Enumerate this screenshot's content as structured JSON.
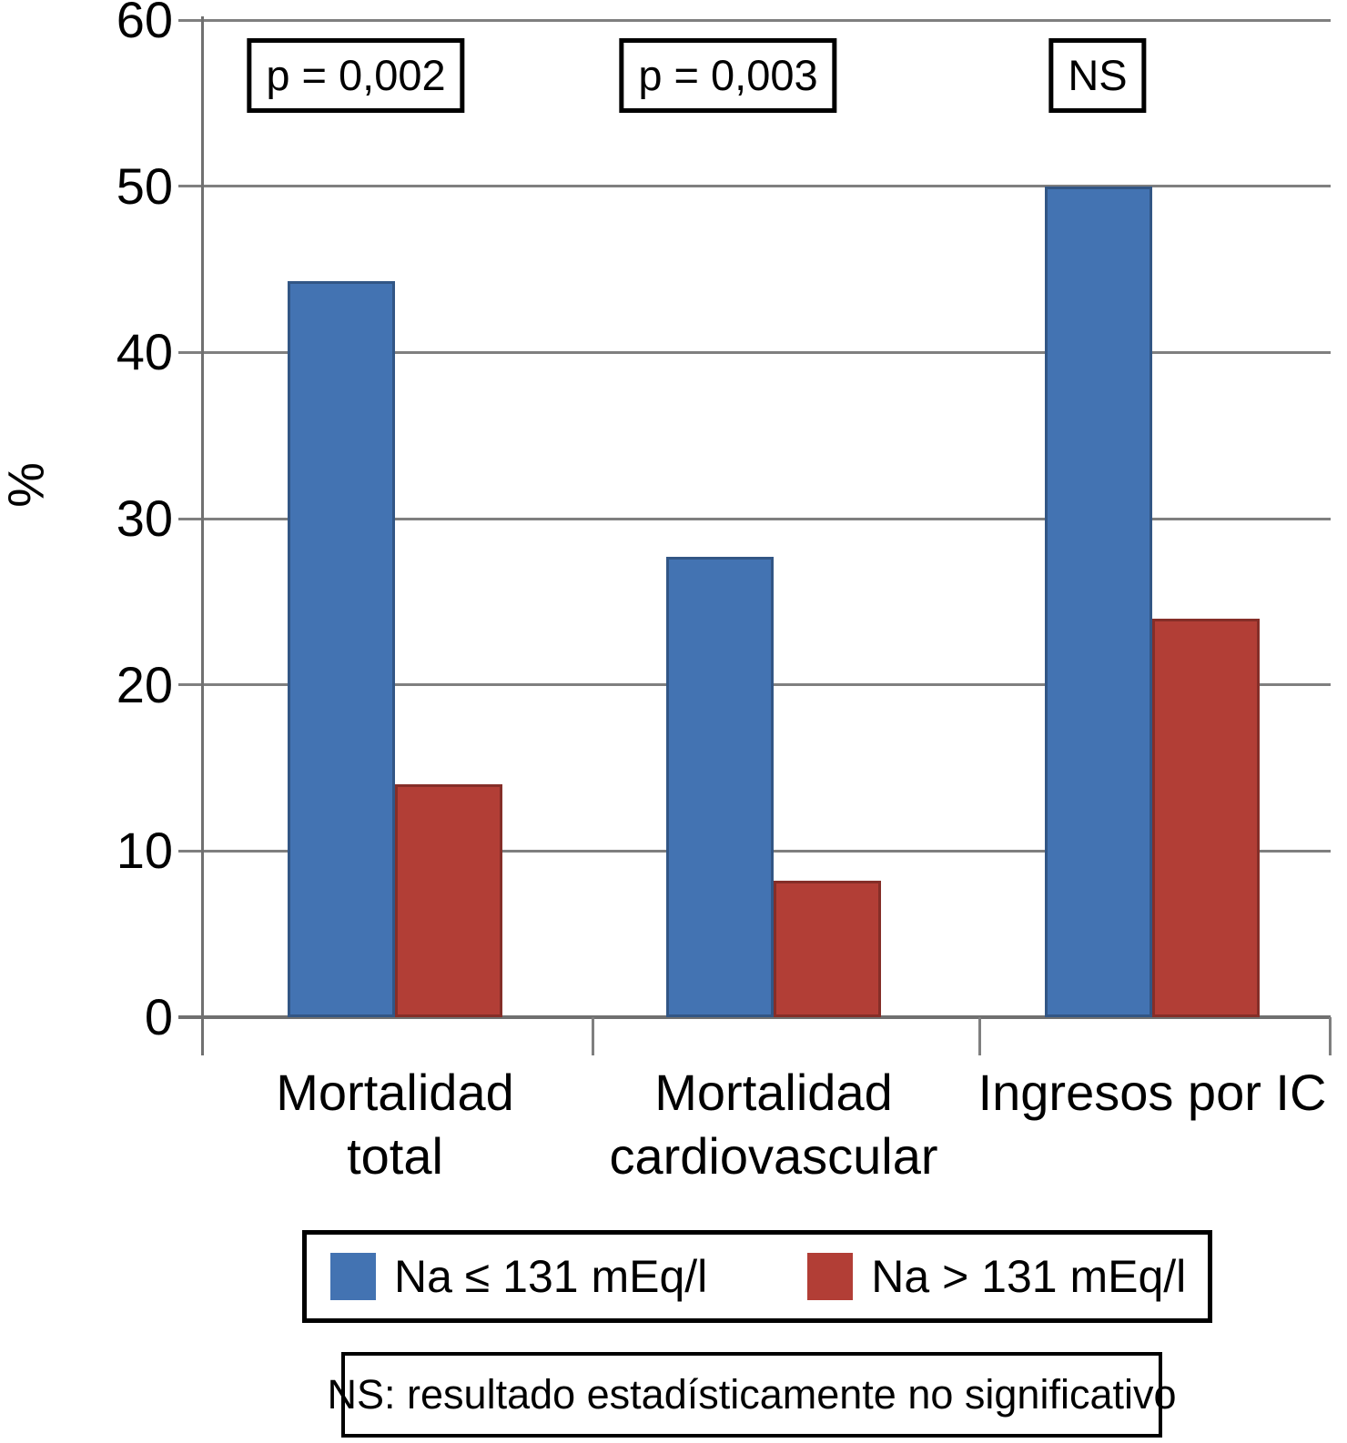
{
  "chart_data": {
    "type": "bar",
    "title": "",
    "ylabel": "%",
    "ylim": [
      0,
      60
    ],
    "yticks": [
      0,
      10,
      20,
      30,
      40,
      50,
      60
    ],
    "grid": true,
    "legend_position": "bottom",
    "categories": [
      {
        "lines": [
          "Mortalidad",
          "total"
        ]
      },
      {
        "lines": [
          "Mortalidad",
          "cardiovascular"
        ]
      },
      {
        "lines": [
          "Ingresos por IC"
        ]
      }
    ],
    "series": [
      {
        "name": "Na ≤ 131 mEq/l",
        "color": "#4373B2",
        "values": [
          44.3,
          27.7,
          50
        ]
      },
      {
        "name": "Na > 131 mEq/l",
        "color": "#B23E36",
        "values": [
          14,
          8.2,
          24
        ]
      }
    ],
    "annotations": [
      "p = 0,002",
      "p = 0,003",
      "NS"
    ],
    "footnote": "NS: resultado estadísticamente no significativo"
  }
}
